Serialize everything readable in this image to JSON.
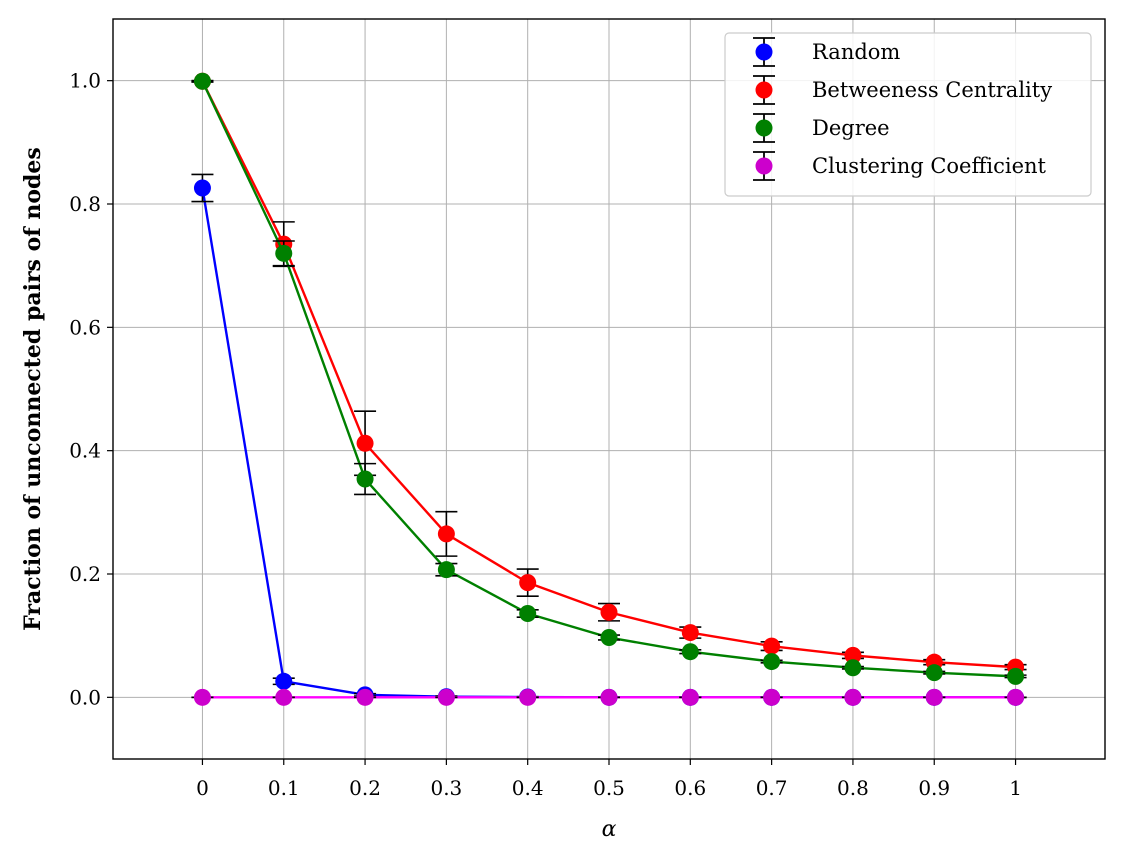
{
  "chart_data": {
    "type": "line",
    "xlabel": "α",
    "ylabel": "Fraction of unconnected pairs of nodes",
    "x": [
      0,
      0.1,
      0.2,
      0.3,
      0.4,
      0.5,
      0.6,
      0.7,
      0.8,
      0.9,
      1
    ],
    "x_tick_labels": [
      "0",
      "0.1",
      "0.2",
      "0.3",
      "0.4",
      "0.5",
      "0.6",
      "0.7",
      "0.8",
      "0.9",
      "1"
    ],
    "y_ticks": [
      0.0,
      0.2,
      0.4,
      0.6,
      0.8,
      1.0
    ],
    "y_tick_labels": [
      "0.0",
      "0.2",
      "0.4",
      "0.6",
      "0.8",
      "1.0"
    ],
    "xlim": [
      -0.11,
      1.11
    ],
    "ylim": [
      -0.1,
      1.1
    ],
    "grid": true,
    "legend_position": "top-right",
    "error_bar_color": "#000000",
    "series": [
      {
        "name": "Random",
        "color": "#0000ff",
        "values": [
          0.826,
          0.026,
          0.004,
          0.001,
          0.0005,
          0.0,
          0.0,
          0.0,
          0.0,
          0.0,
          0.0
        ],
        "errors": [
          0.022,
          0.005,
          0.002,
          0.001,
          0.0005,
          0.0,
          0.0,
          0.0,
          0.0,
          0.0,
          0.0
        ]
      },
      {
        "name": "Betweeness Centrality",
        "color": "#ff0000",
        "values": [
          0.999,
          0.735,
          0.412,
          0.265,
          0.186,
          0.138,
          0.105,
          0.083,
          0.068,
          0.057,
          0.049
        ],
        "errors": [
          0.001,
          0.036,
          0.052,
          0.036,
          0.022,
          0.014,
          0.009,
          0.007,
          0.005,
          0.004,
          0.004
        ]
      },
      {
        "name": "Degree",
        "color": "#008000",
        "values": [
          0.999,
          0.72,
          0.354,
          0.207,
          0.136,
          0.097,
          0.074,
          0.058,
          0.048,
          0.04,
          0.034
        ],
        "errors": [
          0.001,
          0.02,
          0.025,
          0.01,
          0.006,
          0.004,
          0.003,
          0.002,
          0.002,
          0.002,
          0.002
        ]
      },
      {
        "name": "Clustering Coefficient",
        "color": "#cc00cc",
        "line_color": "#ff00ff",
        "values": [
          0.0,
          0.0,
          0.0,
          0.0,
          0.0,
          0.0,
          0.0,
          0.0,
          0.0,
          0.0,
          0.0
        ],
        "errors": [
          0.0,
          0.0,
          0.0,
          0.0,
          0.0,
          0.0,
          0.0,
          0.0,
          0.0,
          0.0,
          0.0
        ]
      }
    ]
  }
}
